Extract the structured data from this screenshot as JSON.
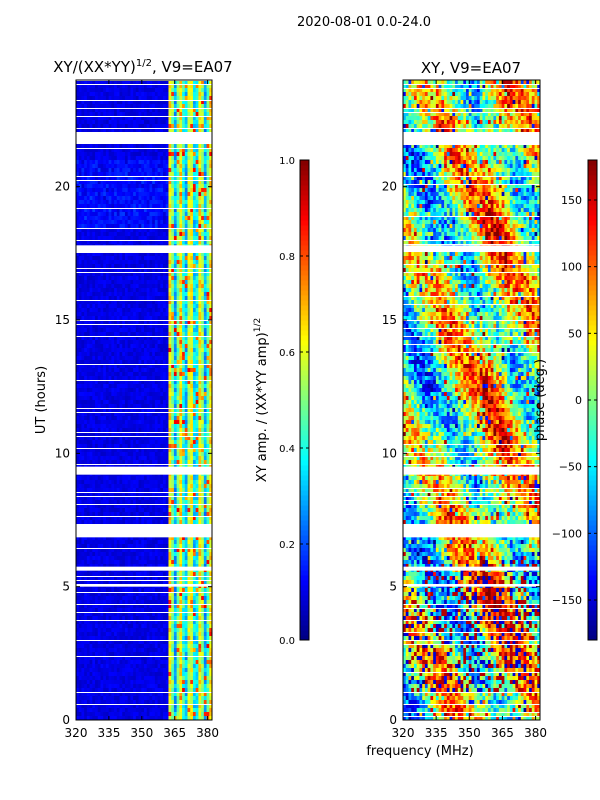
{
  "figure_title": "2020-08-01 0.0-24.0",
  "chart_data": [
    {
      "type": "heatmap",
      "title": "XY/(XX*YY)^1/2, V9=EA07",
      "title_main": "XY/(XX*YY)",
      "title_sup": "1/2",
      "title_rest": ", V9=EA07",
      "xlabel": "",
      "ylabel": "UT (hours)",
      "xlim": [
        320,
        382
      ],
      "ylim": [
        0,
        24
      ],
      "xticks": [
        320,
        335,
        350,
        365,
        380
      ],
      "yticks": [
        0,
        5,
        10,
        15,
        20
      ],
      "colorbar": {
        "label": "XY amp. / (XX*YY amp)^1/2",
        "label_main": "XY amp. / (XX*YY amp)",
        "label_sup": "1/2",
        "range": [
          0.0,
          1.0
        ],
        "ticks": [
          0.0,
          0.2,
          0.4,
          0.6,
          0.8,
          1.0
        ],
        "tick_labels": [
          "0.0",
          "0.2",
          "0.4",
          "0.6",
          "0.8",
          "1.0"
        ]
      },
      "gaps_hours": [
        [
          21.6,
          22.05
        ],
        [
          17.55,
          17.8
        ],
        [
          9.2,
          9.5
        ],
        [
          6.85,
          7.35
        ],
        [
          5.6,
          5.75
        ],
        [
          5.0,
          5.1
        ]
      ],
      "bright_band_mhz": [
        362,
        382
      ]
    },
    {
      "type": "heatmap",
      "title": "XY, V9=EA07",
      "xlabel": "frequency (MHz)",
      "ylabel": "",
      "xlim": [
        320,
        382
      ],
      "ylim": [
        0,
        24
      ],
      "xticks": [
        320,
        335,
        350,
        365,
        380
      ],
      "yticks": [
        0,
        5,
        10,
        15,
        20
      ],
      "colorbar": {
        "label": "phase (deg.)",
        "range": [
          -180,
          180
        ],
        "ticks": [
          -150,
          -100,
          -50,
          0,
          50,
          100,
          150
        ],
        "tick_labels": [
          "−150",
          "−100",
          "−50",
          "0",
          "50",
          "100",
          "150"
        ]
      },
      "gaps_hours": [
        [
          21.6,
          22.05
        ],
        [
          17.55,
          17.8
        ],
        [
          9.2,
          9.5
        ],
        [
          6.85,
          7.35
        ],
        [
          5.6,
          5.75
        ],
        [
          5.0,
          5.1
        ]
      ]
    }
  ]
}
